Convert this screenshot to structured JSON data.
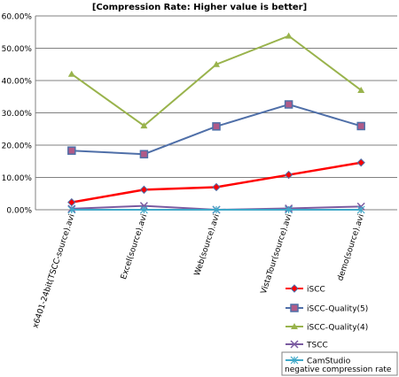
{
  "chart_data": {
    "type": "line",
    "title": "[Compression Rate: Higher value is better]",
    "xlabel": "",
    "ylabel": "",
    "ylim": [
      0,
      60
    ],
    "y_ticks": [
      "0.00%",
      "10.00%",
      "20.00%",
      "30.00%",
      "40.00%",
      "50.00%",
      "60.00%"
    ],
    "grid": "horizontal",
    "legend_position": "bottom-right",
    "categories": [
      "x6401-24bit(TSCC-source).avi",
      "Excel(source).avi",
      "Web(source).avi",
      "VistaTour(source).avi",
      "demo(source).avi"
    ],
    "series": [
      {
        "name": "iSCC",
        "color": "#ff0000",
        "marker": "diamond",
        "values": [
          2.3,
          6.2,
          7.0,
          10.8,
          14.6
        ]
      },
      {
        "name": "iSCC-Quality(5)",
        "color": "#4f6fa8",
        "marker": "square",
        "values": [
          18.3,
          17.2,
          25.8,
          32.6,
          25.9
        ]
      },
      {
        "name": "iSCC-Quality(4)",
        "color": "#99b34c",
        "marker": "triangle",
        "values": [
          42.0,
          26.0,
          45.0,
          53.8,
          37.0
        ]
      },
      {
        "name": "TSCC",
        "color": "#7a5aa0",
        "marker": "x",
        "values": [
          0.3,
          1.2,
          0.0,
          0.4,
          1.0
        ]
      },
      {
        "name": "CamStudio",
        "color": "#3fa8c8",
        "marker": "asterisk",
        "values": [
          0.0,
          0.0,
          0.0,
          0.0,
          0.0
        ]
      }
    ],
    "legend_note": "negative compression rate"
  }
}
